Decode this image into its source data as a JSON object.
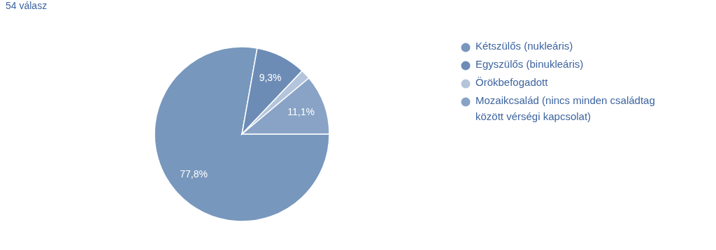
{
  "chart_data": {
    "type": "pie",
    "title": "54 válasz",
    "categories": [
      "Kétszülős (nukleáris)",
      "Egyszülős (binukleáris)",
      "Örökbefogadott",
      "Mozaikcsalád (nincs minden családtag között vérségi kapcsolat)"
    ],
    "values": [
      77.8,
      9.3,
      1.8,
      11.1
    ],
    "value_labels": [
      "77,8%",
      "9,3%",
      null,
      "11,1%"
    ],
    "colors": [
      "#7897bd",
      "#6c8cb6",
      "#b4c5db",
      "#88a3c6"
    ],
    "legend": "right"
  }
}
